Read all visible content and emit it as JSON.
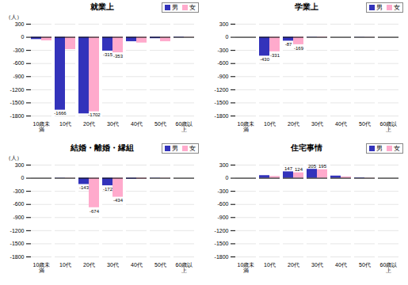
{
  "chart_data": [
    {
      "type": "bar",
      "title": "就業上",
      "ylabel": "（人）",
      "categories": [
        "10歳未\n満",
        "10代",
        "20代",
        "30代",
        "40代",
        "50代",
        "60歳以\n上"
      ],
      "series": [
        {
          "name": "男",
          "color": "#3333bb",
          "values": [
            -50,
            -1666,
            -1750,
            -315,
            -100,
            -30,
            -10
          ],
          "value_labels": [
            null,
            "-1666",
            null,
            "-315",
            null,
            null,
            null
          ]
        },
        {
          "name": "女",
          "color": "#ffaacc",
          "values": [
            -80,
            -280,
            -1702,
            -353,
            -130,
            -100,
            -5
          ],
          "value_labels": [
            null,
            null,
            "-1702",
            "-353",
            null,
            null,
            null
          ]
        }
      ],
      "ylim": [
        -1800,
        300
      ],
      "yticks": [
        300,
        0,
        -300,
        -600,
        -900,
        -1200,
        -1500,
        -1800
      ],
      "grid": true,
      "legend": "upper right",
      "data_labels": true
    },
    {
      "type": "bar",
      "title": "学業上",
      "categories": [
        "10歳未\n満",
        "10代",
        "20代",
        "30代",
        "40代",
        "50代",
        "60歳以\n上"
      ],
      "series": [
        {
          "name": "男",
          "color": "#3333bb",
          "values": [
            0,
            -430,
            -87,
            -5,
            0,
            -3,
            0
          ],
          "value_labels": [
            null,
            "-430",
            "-87",
            null,
            null,
            null,
            null
          ]
        },
        {
          "name": "女",
          "color": "#ffaacc",
          "values": [
            0,
            -331,
            -169,
            -10,
            0,
            -3,
            0
          ],
          "value_labels": [
            null,
            "-331",
            "-169",
            null,
            null,
            null,
            null
          ]
        }
      ],
      "ylim": [
        -1800,
        300
      ],
      "yticks": [
        300,
        0,
        -300,
        -600,
        -900,
        -1200,
        -1500,
        -1800
      ],
      "grid": true,
      "legend": "upper right",
      "data_labels": true
    },
    {
      "type": "bar",
      "title": "結婚・離婚・縁組",
      "ylabel": "（人）",
      "categories": [
        "10歳未\n満",
        "10代",
        "20代",
        "30代",
        "40代",
        "50代",
        "60歳以\n上"
      ],
      "series": [
        {
          "name": "男",
          "color": "#3333bb",
          "values": [
            0,
            -5,
            -143,
            -172,
            -20,
            -5,
            0
          ],
          "value_labels": [
            null,
            null,
            "-143",
            "-172",
            null,
            null,
            null
          ]
        },
        {
          "name": "女",
          "color": "#ffaacc",
          "values": [
            0,
            -5,
            -674,
            -434,
            -20,
            -5,
            0
          ],
          "value_labels": [
            null,
            null,
            "-674",
            "-434",
            null,
            null,
            null
          ]
        }
      ],
      "ylim": [
        -1800,
        300
      ],
      "yticks": [
        300,
        0,
        -300,
        -600,
        -900,
        -1200,
        -1500,
        -1800
      ],
      "grid": true,
      "legend": "upper right",
      "data_labels": true
    },
    {
      "type": "bar",
      "title": "住宅事情",
      "categories": [
        "10歳未\n満",
        "10代",
        "20代",
        "30代",
        "40代",
        "50代",
        "60歳以\n上"
      ],
      "series": [
        {
          "name": "男",
          "color": "#3333bb",
          "values": [
            0,
            60,
            147,
            205,
            50,
            10,
            0
          ],
          "value_labels": [
            null,
            null,
            "147",
            "205",
            null,
            null,
            null
          ]
        },
        {
          "name": "女",
          "color": "#ffaacc",
          "values": [
            0,
            40,
            124,
            195,
            30,
            5,
            0
          ],
          "value_labels": [
            null,
            null,
            "124",
            "195",
            null,
            null,
            null
          ]
        }
      ],
      "ylim": [
        -1800,
        300
      ],
      "yticks": [
        300,
        0,
        -300,
        -600,
        -900,
        -1200,
        -1500,
        -1800
      ],
      "grid": true,
      "legend": "upper right",
      "data_labels": true
    }
  ]
}
